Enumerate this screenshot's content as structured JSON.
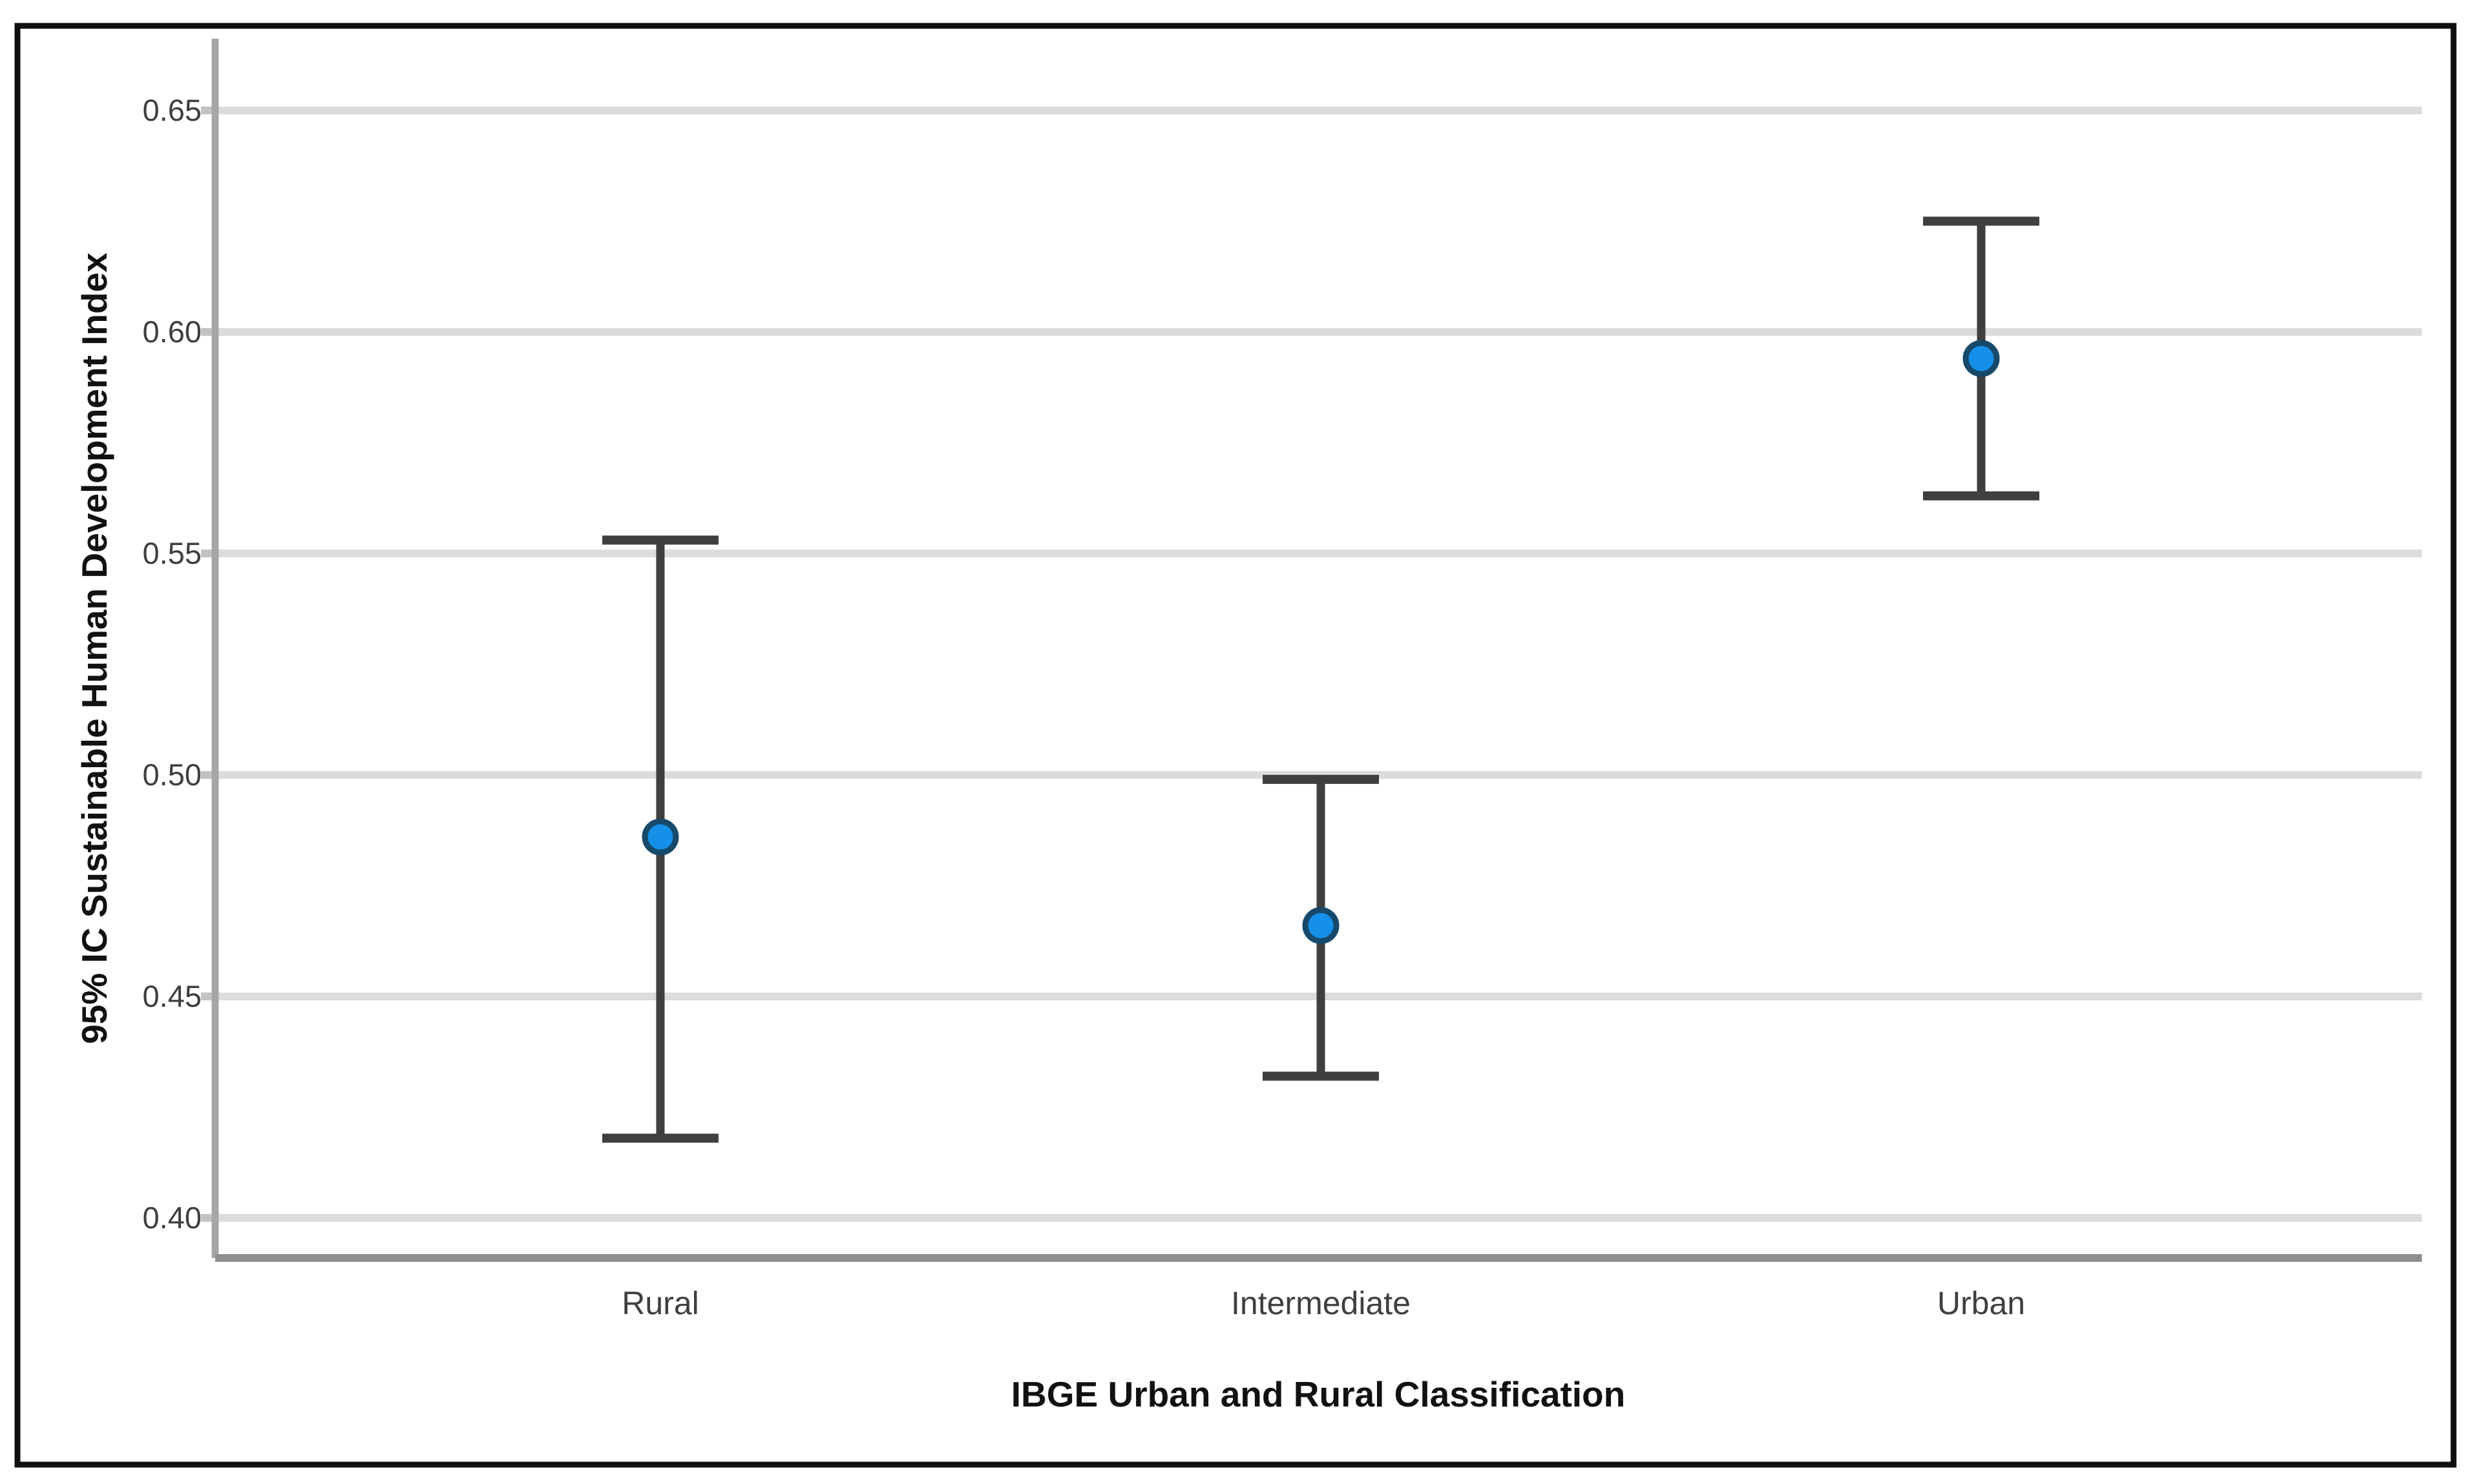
{
  "chart_data": {
    "type": "scatter",
    "subtype": "error-bar-plot-95ci",
    "title": "",
    "xlabel": "IBGE Urban and Rural Classification",
    "ylabel": "95% IC Sustainable Human Development Index",
    "categories": [
      "Rural",
      "Intermediate",
      "Urban"
    ],
    "series": [
      {
        "name": "Mean Sustainable Human Development Index",
        "values": [
          0.486,
          0.466,
          0.594
        ]
      }
    ],
    "error_bars": {
      "kind": "95% confidence interval",
      "low": [
        0.418,
        0.432,
        0.563
      ],
      "high": [
        0.553,
        0.499,
        0.625
      ]
    },
    "y_axis": {
      "tick_labels": [
        "0.65",
        "0.60",
        "0.55",
        "0.50",
        "0.45",
        "0.40"
      ],
      "tick_values": [
        0.65,
        0.6,
        0.55,
        0.5,
        0.45,
        0.4
      ]
    },
    "ylim": [
      0.392,
      0.668
    ],
    "grid": true,
    "legend_position": "none",
    "colors": {
      "marker_fill": "#1490E8",
      "marker_stroke": "#17496B",
      "error_bar": "#3F3F3F",
      "gridline": "#DCDCDC",
      "tick_mark": "#C2C2C2",
      "y_axis_line": "#A6A6A6",
      "x_axis_line": "#8F8F8F",
      "frame_border": "#0F0F0F",
      "background": "#FFFFFF"
    }
  }
}
